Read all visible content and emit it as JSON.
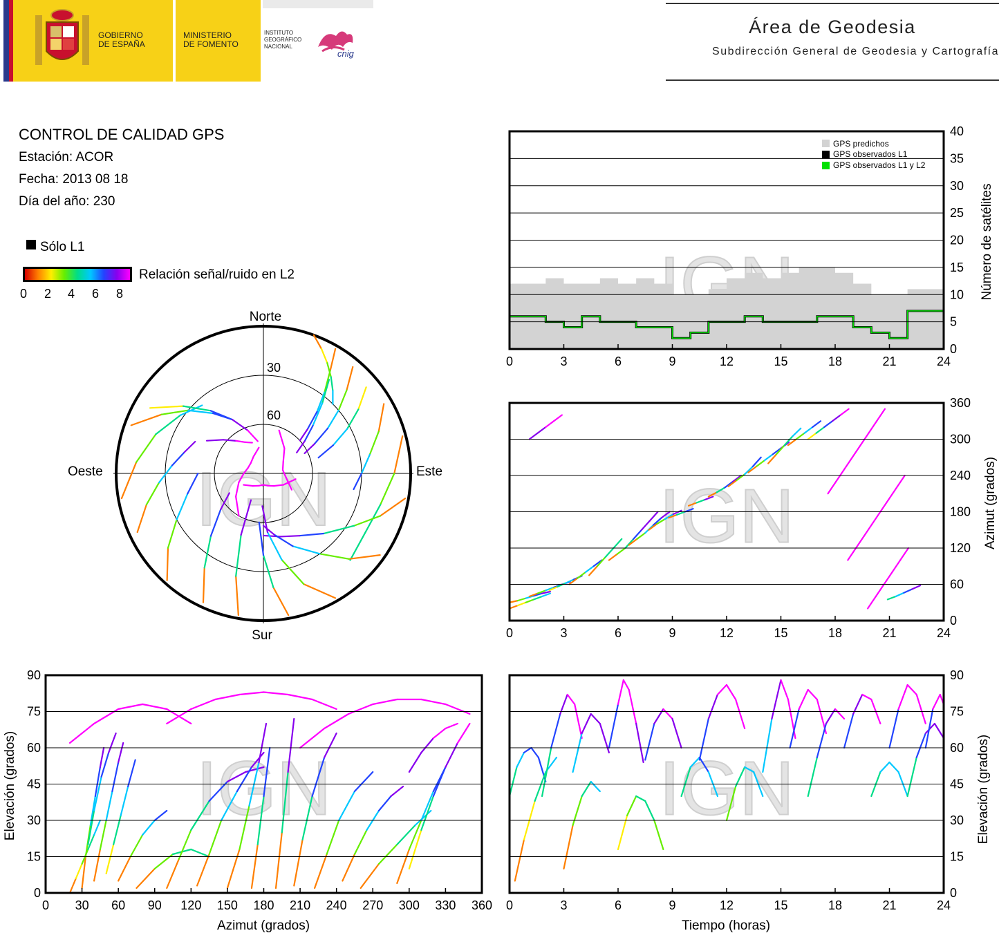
{
  "header": {
    "gov_line1": "GOBIERNO",
    "gov_line2": "DE ESPAÑA",
    "min_line1": "MINISTERIO",
    "min_line2": "DE FOMENTO",
    "ign_line1": "INSTITUTO",
    "ign_line2": "GEOGRÁFICO",
    "ign_line3": "NACIONAL",
    "cnig_logo": "cnig",
    "area_title": "Área de Geodesia",
    "area_subtitle": "Subdirección General de Geodesia y Cartografía"
  },
  "info": {
    "title": "CONTROL DE CALIDAD GPS",
    "station": "Estación: ACOR",
    "date": "Fecha: 2013 08 18",
    "doy": "Día del año: 230"
  },
  "legend": {
    "solo_l1": "Sólo L1",
    "snr_label": "Relación señal/ruido en L2",
    "snr_ticks": [
      "0",
      "2",
      "4",
      "6",
      "8"
    ]
  },
  "watermark": "IGN",
  "colors": {
    "predicted": "#d3d3d3",
    "observed_l1": "#000000",
    "observed_l1l2": "#00e000",
    "snr_scale": [
      "#d40000",
      "#ff7f00",
      "#ffee00",
      "#66ee00",
      "#00dd88",
      "#00c8ff",
      "#2244ff",
      "#8800ee",
      "#ff00ff"
    ]
  },
  "chart_data": [
    {
      "id": "satellites",
      "type": "area",
      "x_ticks": [
        "0",
        "3",
        "6",
        "9",
        "12",
        "15",
        "18",
        "21",
        "24"
      ],
      "y_ticks": [
        "0",
        "5",
        "10",
        "15",
        "20",
        "25",
        "30",
        "35",
        "40"
      ],
      "xlim": [
        0,
        24
      ],
      "ylim": [
        0,
        40
      ],
      "ylabel": "Número de satélites",
      "legend_position": "top-right",
      "legend": [
        "GPS predichos",
        "GPS observados L1",
        "GPS observados L1 y L2"
      ],
      "x": [
        0,
        1,
        2,
        3,
        4,
        5,
        6,
        7,
        8,
        9,
        10,
        11,
        12,
        13,
        14,
        15,
        16,
        17,
        18,
        19,
        20,
        21,
        22,
        23,
        24
      ],
      "series": [
        {
          "name": "GPS predichos",
          "values": [
            12,
            12,
            13,
            12,
            12,
            13,
            12,
            13,
            12,
            10,
            10,
            11,
            13,
            14,
            13,
            14,
            15,
            15,
            14,
            12,
            10,
            10,
            11,
            11,
            11
          ]
        },
        {
          "name": "GPS observados L1",
          "values": [
            6,
            6,
            5,
            4,
            6,
            5,
            5,
            4,
            4,
            2,
            3,
            5,
            5,
            6,
            5,
            5,
            5,
            6,
            6,
            4,
            3,
            2,
            7,
            7,
            6
          ]
        },
        {
          "name": "GPS observados L1 y L2",
          "values": [
            6,
            6,
            5,
            4,
            6,
            5,
            5,
            4,
            4,
            2,
            3,
            5,
            5,
            6,
            5,
            5,
            5,
            6,
            6,
            4,
            3,
            2,
            7,
            7,
            6
          ]
        }
      ]
    },
    {
      "id": "skyplot",
      "type": "scatter",
      "directions": {
        "north": "Norte",
        "south": "Sur",
        "east": "Este",
        "west": "Oeste"
      },
      "ring_labels": [
        "30",
        "60"
      ],
      "rings_elevation": [
        0,
        30,
        60
      ],
      "tracks": [
        {
          "az": [
            30,
            33,
            37,
            41,
            45,
            48
          ],
          "el": [
            2,
            15,
            28,
            40,
            52,
            60
          ],
          "snr": [
            1,
            3,
            5,
            6,
            7,
            8
          ]
        },
        {
          "az": [
            40,
            45,
            50,
            55,
            60,
            64
          ],
          "el": [
            5,
            18,
            30,
            42,
            54,
            62
          ],
          "snr": [
            1,
            3,
            5,
            6,
            7,
            8
          ]
        },
        {
          "az": [
            50,
            56,
            62,
            68,
            74
          ],
          "el": [
            8,
            20,
            32,
            44,
            55
          ],
          "snr": [
            2,
            4,
            5,
            6,
            7
          ]
        },
        {
          "az": [
            60,
            70,
            80,
            90,
            100
          ],
          "el": [
            5,
            15,
            24,
            30,
            34
          ],
          "snr": [
            1,
            3,
            5,
            6,
            6
          ]
        },
        {
          "az": [
            75,
            90,
            105,
            120,
            135
          ],
          "el": [
            2,
            10,
            16,
            18,
            15
          ],
          "snr": [
            1,
            3,
            4,
            4,
            3
          ]
        },
        {
          "az": [
            100,
            110,
            120,
            135,
            150,
            165,
            180
          ],
          "el": [
            2,
            14,
            26,
            38,
            46,
            50,
            52
          ],
          "snr": [
            1,
            3,
            4,
            6,
            7,
            7,
            8
          ]
        },
        {
          "az": [
            125,
            135,
            145,
            158,
            170,
            180
          ],
          "el": [
            3,
            16,
            30,
            42,
            52,
            58
          ],
          "snr": [
            1,
            3,
            5,
            6,
            7,
            8
          ]
        },
        {
          "az": [
            150,
            160,
            168,
            176,
            182
          ],
          "el": [
            2,
            18,
            36,
            54,
            70
          ],
          "snr": [
            1,
            3,
            5,
            7,
            8
          ]
        },
        {
          "az": [
            170,
            175,
            180,
            185
          ],
          "el": [
            2,
            20,
            40,
            60
          ],
          "snr": [
            1,
            4,
            6,
            8
          ]
        },
        {
          "az": [
            190,
            195,
            200,
            205
          ],
          "el": [
            2,
            25,
            50,
            72
          ],
          "snr": [
            1,
            4,
            7,
            8
          ]
        },
        {
          "az": [
            205,
            212,
            220,
            230,
            240
          ],
          "el": [
            3,
            22,
            40,
            56,
            66
          ],
          "snr": [
            1,
            4,
            6,
            7,
            8
          ]
        },
        {
          "az": [
            222,
            232,
            242,
            255,
            270
          ],
          "el": [
            2,
            16,
            30,
            42,
            50
          ],
          "snr": [
            1,
            3,
            5,
            6,
            7
          ]
        },
        {
          "az": [
            245,
            255,
            265,
            275,
            285,
            295
          ],
          "el": [
            5,
            16,
            26,
            34,
            40,
            44
          ],
          "snr": [
            1,
            3,
            5,
            6,
            7,
            7
          ]
        },
        {
          "az": [
            260,
            275,
            290,
            305,
            318
          ],
          "el": [
            2,
            12,
            20,
            28,
            34
          ],
          "snr": [
            1,
            3,
            4,
            5,
            6
          ]
        },
        {
          "az": [
            290,
            300,
            310,
            320,
            330
          ],
          "el": [
            4,
            18,
            30,
            42,
            52
          ],
          "snr": [
            1,
            3,
            5,
            6,
            7
          ]
        },
        {
          "az": [
            300,
            310,
            320,
            330,
            340,
            350
          ],
          "el": [
            10,
            26,
            40,
            52,
            62,
            70
          ],
          "snr": [
            2,
            4,
            6,
            7,
            8,
            8
          ]
        },
        {
          "az": [
            210,
            230,
            250,
            270,
            290,
            310,
            330,
            350
          ],
          "el": [
            60,
            68,
            74,
            78,
            80,
            80,
            78,
            74
          ],
          "snr": [
            8,
            8,
            8,
            8,
            8,
            8,
            8,
            8
          ]
        },
        {
          "az": [
            100,
            120,
            140,
            160,
            180,
            200,
            220,
            240
          ],
          "el": [
            70,
            76,
            80,
            82,
            83,
            82,
            80,
            76
          ],
          "snr": [
            8,
            8,
            8,
            8,
            8,
            8,
            8,
            8
          ]
        },
        {
          "az": [
            20,
            40,
            60,
            80,
            100,
            120
          ],
          "el": [
            62,
            70,
            76,
            78,
            76,
            70
          ],
          "snr": [
            8,
            8,
            8,
            8,
            8,
            8
          ]
        },
        {
          "az": [
            35,
            40,
            46,
            52,
            58
          ],
          "el": [
            20,
            34,
            48,
            58,
            66
          ],
          "snr": [
            4,
            5,
            6,
            7,
            8
          ]
        },
        {
          "az": [
            20,
            25,
            30,
            35,
            40,
            45
          ],
          "el": [
            0,
            6,
            12,
            18,
            24,
            30
          ],
          "snr": [
            1,
            2,
            3,
            4,
            5,
            5
          ]
        },
        {
          "az": [
            300,
            310,
            320,
            330,
            340
          ],
          "el": [
            50,
            58,
            64,
            68,
            70
          ],
          "snr": [
            7,
            7,
            8,
            8,
            8
          ]
        }
      ]
    },
    {
      "id": "azimuth_time",
      "type": "scatter",
      "x_ticks": [
        "0",
        "3",
        "6",
        "9",
        "12",
        "15",
        "18",
        "21",
        "24"
      ],
      "y_ticks": [
        "0",
        "60",
        "120",
        "180",
        "240",
        "300",
        "360"
      ],
      "xlim": [
        0,
        24
      ],
      "ylim": [
        0,
        360
      ],
      "ylabel": "Azimut (grados)"
    },
    {
      "id": "elevation_azimuth",
      "type": "scatter",
      "x_ticks": [
        "0",
        "30",
        "60",
        "90",
        "120",
        "150",
        "180",
        "210",
        "240",
        "270",
        "300",
        "330",
        "360"
      ],
      "y_ticks": [
        "0",
        "15",
        "30",
        "45",
        "60",
        "75",
        "90"
      ],
      "xlim": [
        0,
        360
      ],
      "ylim": [
        0,
        90
      ],
      "xlabel": "Azimut (grados)",
      "ylabel": "Elevación (grados)"
    },
    {
      "id": "elevation_time",
      "type": "scatter",
      "x_ticks": [
        "0",
        "3",
        "6",
        "9",
        "12",
        "15",
        "18",
        "21",
        "24"
      ],
      "y_ticks": [
        "0",
        "15",
        "30",
        "45",
        "60",
        "75",
        "90"
      ],
      "xlim": [
        0,
        24
      ],
      "ylim": [
        0,
        90
      ],
      "xlabel": "Tiempo (horas)",
      "ylabel": "Elevación (grados)",
      "tracks": [
        {
          "t": [
            0.0,
            0.4,
            0.8,
            1.2,
            1.6,
            2.0
          ],
          "el": [
            40,
            52,
            58,
            60,
            56,
            46
          ]
        },
        {
          "t": [
            0.3,
            0.8,
            1.4,
            2.0,
            2.6
          ],
          "el": [
            5,
            22,
            38,
            50,
            56
          ]
        },
        {
          "t": [
            1.8,
            2.3,
            2.8,
            3.2,
            3.6,
            4.0
          ],
          "el": [
            40,
            60,
            74,
            82,
            78,
            64
          ]
        },
        {
          "t": [
            3.5,
            4.0,
            4.5,
            5.0,
            5.5
          ],
          "el": [
            50,
            66,
            74,
            70,
            58
          ]
        },
        {
          "t": [
            3.0,
            3.5,
            4.0,
            4.5,
            5.0
          ],
          "el": [
            10,
            28,
            40,
            46,
            42
          ]
        },
        {
          "t": [
            5.5,
            6.0,
            6.3,
            6.6,
            7.0,
            7.4
          ],
          "el": [
            60,
            78,
            88,
            84,
            70,
            54
          ]
        },
        {
          "t": [
            6.0,
            6.5,
            7.0,
            7.5,
            8.0,
            8.5
          ],
          "el": [
            18,
            32,
            40,
            38,
            30,
            18
          ]
        },
        {
          "t": [
            7.5,
            8.0,
            8.5,
            9.0,
            9.5
          ],
          "el": [
            55,
            70,
            76,
            72,
            60
          ]
        },
        {
          "t": [
            9.5,
            10.0,
            10.5,
            11.0,
            11.5
          ],
          "el": [
            40,
            52,
            56,
            50,
            40
          ]
        },
        {
          "t": [
            10.5,
            11.0,
            11.5,
            12.0,
            12.5,
            13.0
          ],
          "el": [
            55,
            72,
            82,
            86,
            80,
            68
          ]
        },
        {
          "t": [
            12.0,
            12.5,
            13.0,
            13.5,
            14.0
          ],
          "el": [
            30,
            44,
            52,
            50,
            40
          ]
        },
        {
          "t": [
            14.0,
            14.5,
            15.0,
            15.4,
            15.8
          ],
          "el": [
            50,
            72,
            88,
            80,
            64
          ]
        },
        {
          "t": [
            15.5,
            16.0,
            16.5,
            17.0,
            17.5
          ],
          "el": [
            60,
            76,
            84,
            80,
            66
          ]
        },
        {
          "t": [
            16.5,
            17.0,
            17.5,
            18.0,
            18.5
          ],
          "el": [
            40,
            56,
            70,
            76,
            72
          ]
        },
        {
          "t": [
            18.5,
            19.0,
            19.5,
            20.0,
            20.5
          ],
          "el": [
            60,
            74,
            82,
            80,
            70
          ]
        },
        {
          "t": [
            20.0,
            20.5,
            21.0,
            21.5,
            22.0
          ],
          "el": [
            40,
            50,
            54,
            50,
            40
          ]
        },
        {
          "t": [
            21.0,
            21.5,
            22.0,
            22.5,
            23.0
          ],
          "el": [
            60,
            76,
            86,
            82,
            70
          ]
        },
        {
          "t": [
            22.0,
            22.5,
            23.0,
            23.5,
            24.0
          ],
          "el": [
            40,
            56,
            66,
            70,
            64
          ]
        },
        {
          "t": [
            23.0,
            23.4,
            23.8,
            24.0
          ],
          "el": [
            60,
            76,
            82,
            78
          ]
        }
      ]
    }
  ]
}
